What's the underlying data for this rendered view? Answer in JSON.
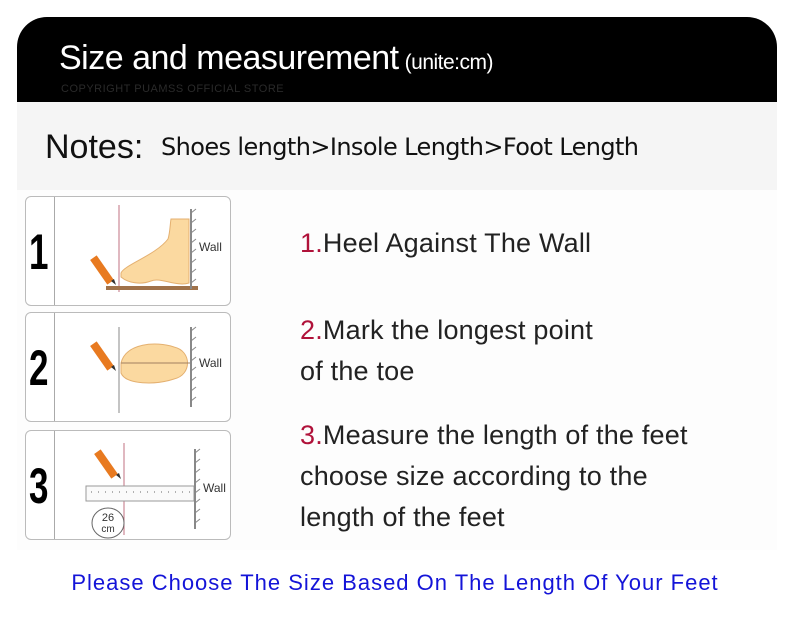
{
  "header": {
    "title": "Size and measurement",
    "unit": "(unite:cm)",
    "copyright": "COPYRIGHT PUAMSS OFFICIAL STORE"
  },
  "notes": {
    "label": "Notes:",
    "text": "Shoes length>Insole Length>Foot Length"
  },
  "panels": [
    {
      "number": "1",
      "wall": "Wall"
    },
    {
      "number": "2",
      "wall": "Wall"
    },
    {
      "number": "3",
      "wall": "Wall",
      "measure": "26",
      "measure_unit": "cm"
    }
  ],
  "steps": [
    {
      "num": "1.",
      "lines": [
        "Heel Against The Wall"
      ]
    },
    {
      "num": "2.",
      "lines": [
        "Mark the longest point",
        "of the toe"
      ]
    },
    {
      "num": "3.",
      "lines": [
        "Measure the length of the feet",
        "choose size according to the",
        "length of the feet"
      ]
    }
  ],
  "footer": "Please Choose The Size Based On The Length Of Your Feet",
  "colors": {
    "step_number": "#b0123a",
    "footer": "#1414d8",
    "header_bg": "#000000"
  }
}
